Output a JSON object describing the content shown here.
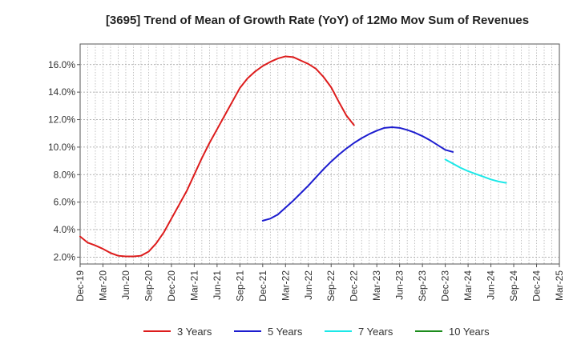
{
  "chart_data": {
    "type": "line",
    "title": "[3695]  Trend of Mean of Growth Rate (YoY) of 12Mo Mov Sum of Revenues",
    "xlabel": "",
    "ylabel": "",
    "ylim": [
      1.5,
      17.5
    ],
    "yticks": [
      2.0,
      4.0,
      6.0,
      8.0,
      10.0,
      12.0,
      14.0,
      16.0
    ],
    "ytick_labels": [
      "2.0%",
      "4.0%",
      "6.0%",
      "8.0%",
      "10.0%",
      "12.0%",
      "14.0%",
      "16.0%"
    ],
    "x_categories": [
      "Dec-19",
      "Mar-20",
      "Jun-20",
      "Sep-20",
      "Dec-20",
      "Mar-21",
      "Jun-21",
      "Sep-21",
      "Dec-21",
      "Mar-22",
      "Jun-22",
      "Sep-22",
      "Dec-22",
      "Mar-23",
      "Jun-23",
      "Sep-23",
      "Dec-23",
      "Mar-24",
      "Jun-24",
      "Sep-24",
      "Dec-24",
      "Mar-25"
    ],
    "grid": true,
    "legend_position": "bottom",
    "series": [
      {
        "name": "3 Years",
        "color": "#dd1c1c",
        "start_index": 0,
        "values": [
          3.5,
          3.05,
          2.85,
          2.6,
          2.3,
          2.1,
          2.05,
          2.05,
          2.1,
          2.4,
          3.0,
          3.8,
          4.8,
          5.8,
          6.8,
          8.0,
          9.2,
          10.3,
          11.3,
          12.3,
          13.3,
          14.3,
          15.0,
          15.5,
          15.9,
          16.2,
          16.45,
          16.6,
          16.55,
          16.3,
          16.05,
          15.7,
          15.1,
          14.35,
          13.3,
          12.3,
          11.6
        ]
      },
      {
        "name": "5 Years",
        "color": "#1c1ccf",
        "start_index": 24,
        "values": [
          4.65,
          4.8,
          5.1,
          5.6,
          6.1,
          6.65,
          7.2,
          7.8,
          8.4,
          8.95,
          9.45,
          9.9,
          10.3,
          10.65,
          10.95,
          11.2,
          11.4,
          11.45,
          11.4,
          11.25,
          11.05,
          10.8,
          10.5,
          10.15,
          9.8,
          9.65
        ]
      },
      {
        "name": "7 Years",
        "color": "#1ce8e8",
        "start_index": 48,
        "values": [
          9.1,
          8.8,
          8.5,
          8.25,
          8.05,
          7.85,
          7.65,
          7.5,
          7.4
        ]
      },
      {
        "name": "10 Years",
        "color": "#1c8c1c",
        "start_index": 0,
        "values": []
      }
    ]
  }
}
